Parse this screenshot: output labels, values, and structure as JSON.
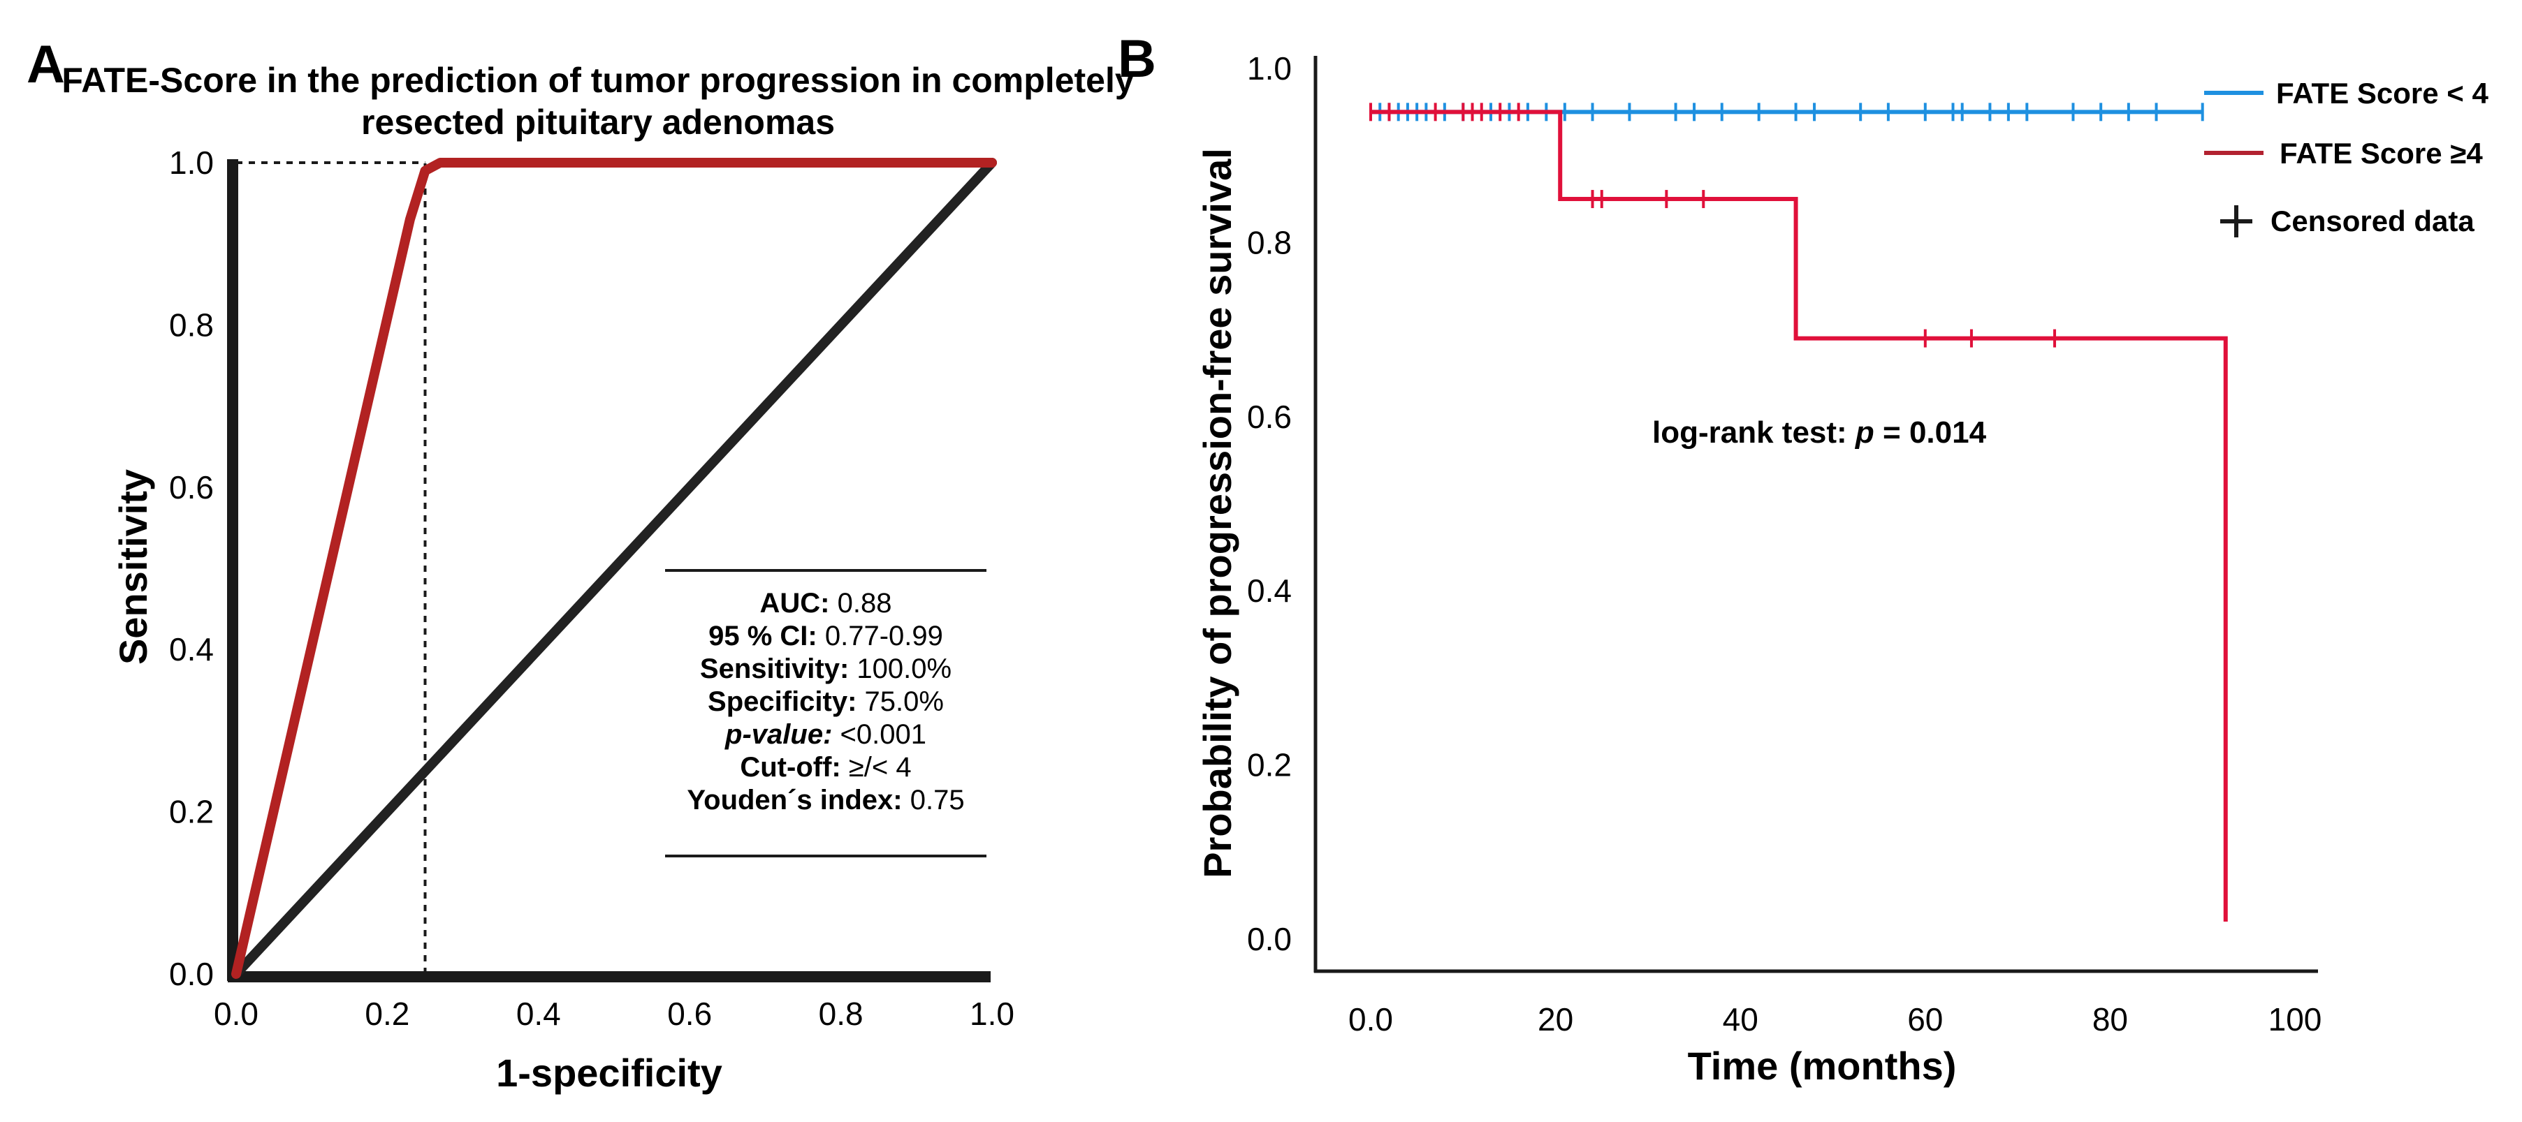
{
  "panels": {
    "a": {
      "letter": "A"
    },
    "b": {
      "letter": "B"
    }
  },
  "chart_data": [
    {
      "type": "line",
      "panel": "A",
      "title_line1": "FATE-Score in the prediction of tumor progression in completely",
      "title_line2": "resected pituitary adenomas",
      "xlabel": "1-specificity",
      "ylabel": "Sensitivity",
      "xlim": [
        0.0,
        1.0
      ],
      "ylim": [
        0.0,
        1.0
      ],
      "xticks": [
        "0.0",
        "0.2",
        "0.4",
        "0.6",
        "0.8",
        "1.0"
      ],
      "yticks": [
        "0.0",
        "0.2",
        "0.4",
        "0.6",
        "0.8",
        "1.0"
      ],
      "series": [
        {
          "name": "ROC curve",
          "color": "#b22222",
          "x": [
            0.0,
            0.23,
            0.25,
            0.27,
            0.3,
            1.0
          ],
          "y": [
            0.0,
            0.93,
            0.99,
            1.0,
            1.0,
            1.0
          ]
        },
        {
          "name": "Reference line",
          "color": "#222222",
          "x": [
            0.0,
            1.0
          ],
          "y": [
            0.0,
            1.0
          ]
        }
      ],
      "cutoff_point": {
        "x": 0.25,
        "y": 1.0
      },
      "stats": [
        {
          "label": "AUC:",
          "value": "0.88",
          "italic": false
        },
        {
          "label": "95 % CI:",
          "value": "0.77-0.99",
          "italic": false
        },
        {
          "label": "Sensitivity:",
          "value": "100.0%",
          "italic": false
        },
        {
          "label": "Specificity:",
          "value": "75.0%",
          "italic": false
        },
        {
          "label": "p-value:",
          "value": "<0.001",
          "italic": true
        },
        {
          "label": "Cut-off:",
          "value": "≥/< 4",
          "italic": false
        },
        {
          "label": "Youden´s index:",
          "value": "0.75",
          "italic": false
        }
      ]
    },
    {
      "type": "line",
      "panel": "B",
      "xlabel": "Time (months)",
      "ylabel": "Probability of progression-free survival",
      "xlim": [
        0,
        100
      ],
      "ylim": [
        0.0,
        1.0
      ],
      "xticks": [
        "0.0",
        "20",
        "40",
        "60",
        "80",
        "100"
      ],
      "yticks": [
        "0.0",
        "0.2",
        "0.4",
        "0.6",
        "0.8",
        "1.0"
      ],
      "annotation_prefix": "log-rank test: ",
      "annotation_p": "p",
      "annotation_suffix": " = 0.014",
      "legend_censored": "Censored data",
      "series": [
        {
          "name": "FATE Score < 4",
          "color": "#1e90e0",
          "steps": [
            [
              0,
              0.95
            ],
            [
              90,
              0.95
            ]
          ],
          "censored": [
            1,
            2,
            3,
            4,
            5,
            6,
            8,
            10,
            13,
            15,
            17,
            19,
            21,
            24,
            28,
            33,
            35,
            38,
            42,
            46,
            48,
            53,
            56,
            60,
            63,
            64,
            67,
            69,
            71,
            76,
            79,
            82,
            85,
            90
          ]
        },
        {
          "name": "FATE Score ≥4",
          "color": "#e0103a",
          "steps": [
            [
              0,
              0.95
            ],
            [
              20.5,
              0.95
            ],
            [
              20.5,
              0.85
            ],
            [
              46,
              0.85
            ],
            [
              46,
              0.69
            ],
            [
              92.5,
              0.69
            ],
            [
              92.5,
              0.02
            ]
          ],
          "censored": [
            0,
            2,
            7,
            10,
            11,
            12,
            14,
            16,
            24,
            25,
            32,
            36,
            60,
            65,
            74
          ]
        }
      ]
    }
  ]
}
